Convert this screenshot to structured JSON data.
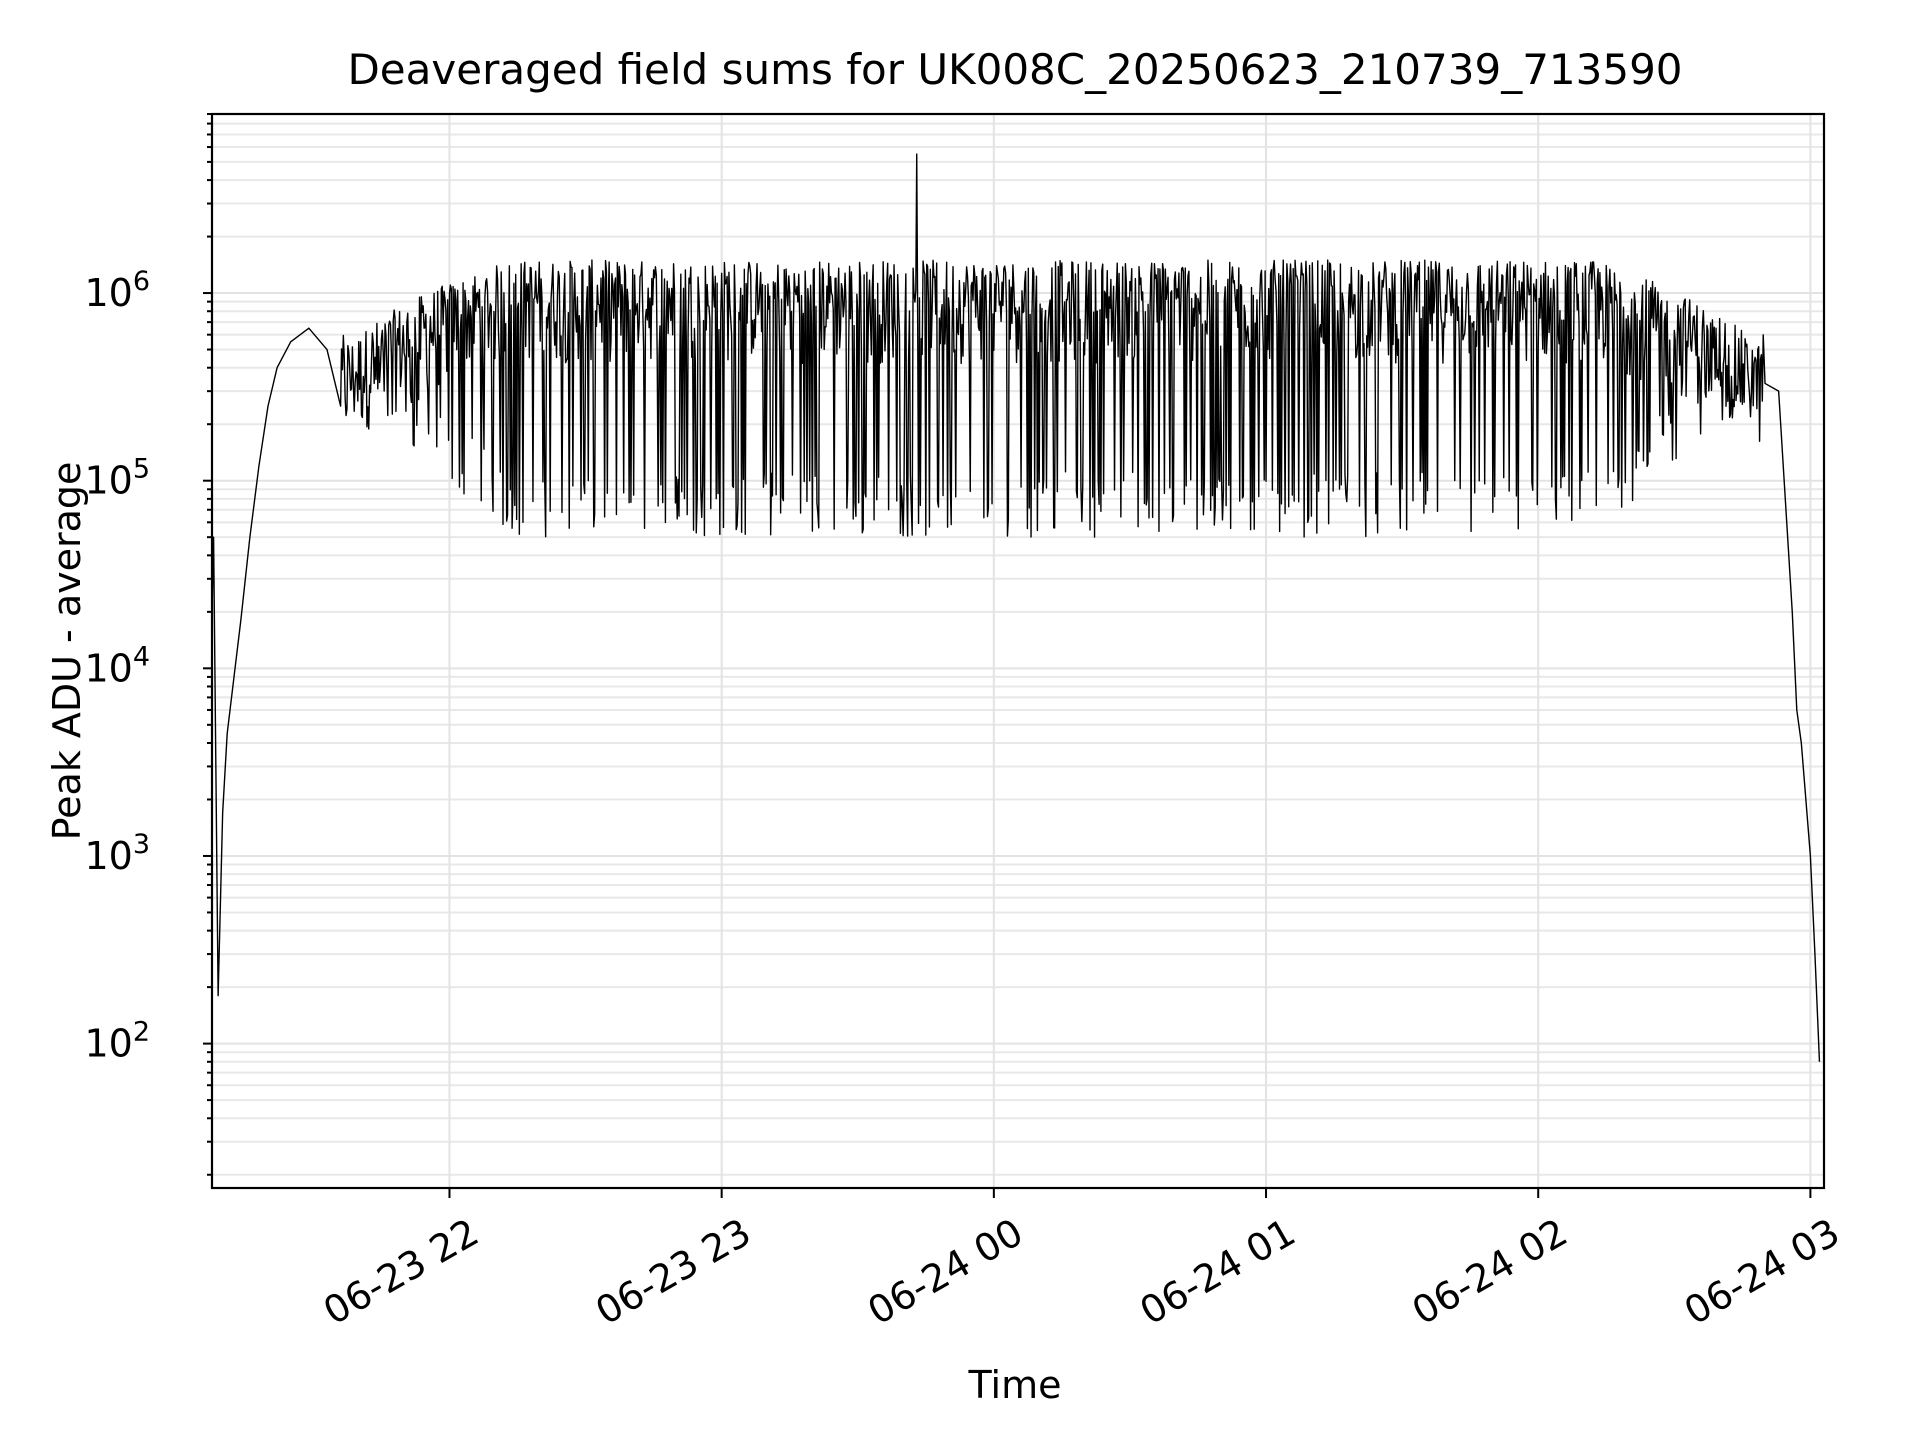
{
  "chart_data": {
    "type": "line",
    "title": "Deaveraged field sums for UK008C_20250623_210739_713590",
    "xlabel": "Time",
    "ylabel": "Peak ADU - average",
    "yscale": "log",
    "ylim": [
      17,
      9000000
    ],
    "xlim": [
      "2025-06-23 21:07:39",
      "2025-06-24 03:03:00"
    ],
    "grid": true,
    "grid_color": "#e3e3e3",
    "line_color": "#000000",
    "x_ticks": [
      {
        "value": "2025-06-23 22:00",
        "label": "06-23 22"
      },
      {
        "value": "2025-06-23 23:00",
        "label": "06-23 23"
      },
      {
        "value": "2025-06-24 00:00",
        "label": "06-24 00"
      },
      {
        "value": "2025-06-24 01:00",
        "label": "06-24 01"
      },
      {
        "value": "2025-06-24 02:00",
        "label": "06-24 02"
      },
      {
        "value": "2025-06-24 03:00",
        "label": "06-24 03"
      }
    ],
    "y_ticks": [
      {
        "value": 100,
        "base": "10",
        "exp": "2"
      },
      {
        "value": 1000,
        "base": "10",
        "exp": "3"
      },
      {
        "value": 10000,
        "base": "10",
        "exp": "4"
      },
      {
        "value": 100000,
        "base": "10",
        "exp": "5"
      },
      {
        "value": 1000000,
        "base": "10",
        "exp": "6"
      }
    ],
    "series": [
      {
        "points": [
          [
            "2025-06-23 21:07:39",
            20000
          ],
          [
            "2025-06-23 21:08:00",
            50000
          ],
          [
            "2025-06-23 21:09:00",
            180
          ],
          [
            "2025-06-23 21:10:00",
            1700
          ],
          [
            "2025-06-23 21:11:00",
            4500
          ],
          [
            "2025-06-23 21:12:30",
            9000
          ],
          [
            "2025-06-23 21:14:00",
            18000
          ],
          [
            "2025-06-23 21:16:00",
            50000
          ],
          [
            "2025-06-23 21:18:00",
            120000
          ],
          [
            "2025-06-23 21:20:00",
            250000
          ],
          [
            "2025-06-23 21:22:00",
            400000
          ],
          [
            "2025-06-23 21:25:00",
            550000
          ],
          [
            "2025-06-23 21:29:00",
            650000
          ],
          [
            "2025-06-23 21:33:00",
            500000
          ],
          [
            "2025-06-23 21:38:00",
            350000
          ],
          [
            "2025-06-23 21:45:00",
            600000
          ],
          [
            "2025-06-23 21:55:00",
            800000
          ],
          [
            "2025-06-23 22:10:00",
            1000000
          ],
          [
            "2025-06-23 23:43:00",
            5500000
          ],
          [
            "2025-06-24 02:30:00",
            600000
          ],
          [
            "2025-06-24 02:45:00",
            700000
          ],
          [
            "2025-06-24 02:50:00",
            600000
          ],
          [
            "2025-06-24 02:53:00",
            300000
          ],
          [
            "2025-06-24 02:56:00",
            20000
          ],
          [
            "2025-06-24 02:57:00",
            6000
          ],
          [
            "2025-06-24 02:58:00",
            4000
          ],
          [
            "2025-06-24 03:00:00",
            1000
          ],
          [
            "2025-06-24 03:01:00",
            300
          ],
          [
            "2025-06-24 03:02:00",
            80
          ]
        ]
      }
    ]
  }
}
